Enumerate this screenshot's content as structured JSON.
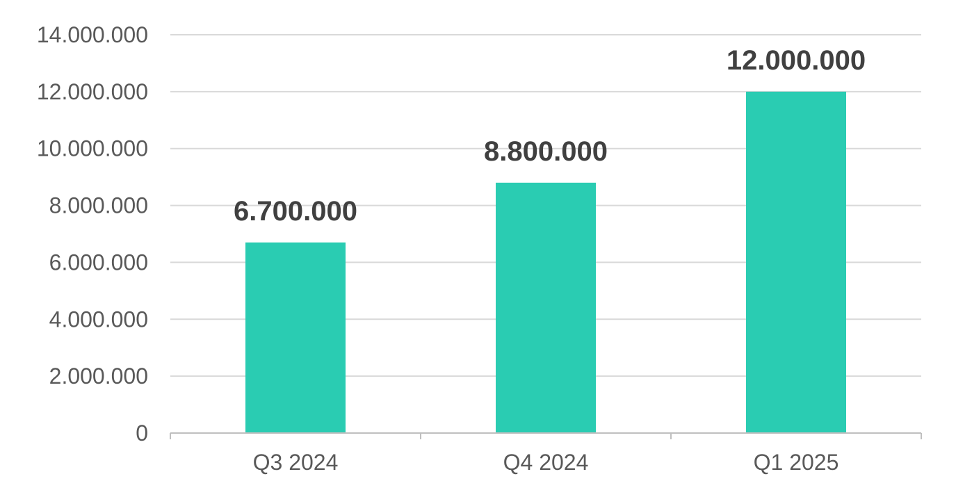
{
  "chart_data": {
    "type": "bar",
    "title": "",
    "xlabel": "",
    "ylabel": "",
    "categories": [
      "Q3 2024",
      "Q4 2024",
      "Q1 2025"
    ],
    "values": [
      6700000,
      8800000,
      12000000
    ],
    "data_labels": [
      "6.700.000",
      "8.800.000",
      "12.000.000"
    ],
    "ylim": [
      0,
      14000000
    ],
    "yticks": [
      0,
      2000000,
      4000000,
      6000000,
      8000000,
      10000000,
      12000000,
      14000000
    ],
    "ytick_labels": [
      "0",
      "2.000.000",
      "4.000.000",
      "6.000.000",
      "8.000.000",
      "10.000.000",
      "12.000.000",
      "14.000.000"
    ],
    "grid": true,
    "legend": "none",
    "colors": {
      "bar": "#2ACCB2",
      "grid": "#D9D9D9",
      "axis": "#BFBFBF"
    }
  }
}
